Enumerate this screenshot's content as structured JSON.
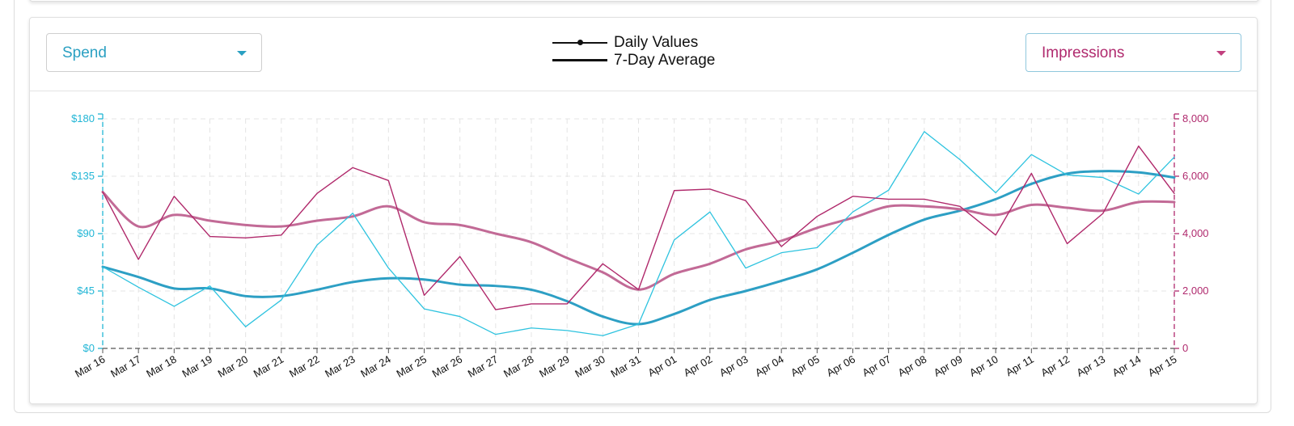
{
  "controls": {
    "left_metric": "Spend",
    "right_metric": "Impressions"
  },
  "legend": {
    "daily": "Daily Values",
    "average": "7-Day Average"
  },
  "colors": {
    "spend": "#2ec3df",
    "spend_avg": "#2d9fc4",
    "impressions": "#b0296b",
    "impressions_avg": "#c26a96",
    "grid": "#e4e4e4"
  },
  "chart_data": {
    "type": "line",
    "categories": [
      "Mar 16",
      "Mar 17",
      "Mar 18",
      "Mar 19",
      "Mar 20",
      "Mar 21",
      "Mar 22",
      "Mar 23",
      "Mar 24",
      "Mar 25",
      "Mar 26",
      "Mar 27",
      "Mar 28",
      "Mar 29",
      "Mar 30",
      "Mar 31",
      "Apr 01",
      "Apr 02",
      "Apr 03",
      "Apr 04",
      "Apr 05",
      "Apr 06",
      "Apr 07",
      "Apr 08",
      "Apr 09",
      "Apr 10",
      "Apr 11",
      "Apr 12",
      "Apr 13",
      "Apr 14",
      "Apr 15"
    ],
    "y_left": {
      "label": "Spend",
      "range": [
        0,
        180
      ],
      "ticks": [
        "$0",
        "$45",
        "$90",
        "$135",
        "$180"
      ],
      "tick_values": [
        0,
        45,
        90,
        135,
        180
      ]
    },
    "y_right": {
      "label": "Impressions",
      "range": [
        0,
        8000
      ],
      "ticks": [
        "0",
        "2,000",
        "4,000",
        "6,000",
        "8,000"
      ],
      "tick_values": [
        0,
        2000,
        4000,
        6000,
        8000
      ]
    },
    "series": [
      {
        "name": "Spend Daily Values",
        "axis": "left",
        "style": "thin",
        "values": [
          64,
          48,
          33,
          49,
          17,
          38,
          81,
          106,
          63,
          31,
          25,
          11,
          16,
          14,
          10,
          19,
          85,
          107,
          63,
          75,
          79,
          107,
          124,
          170,
          148,
          122,
          152,
          136,
          134,
          121,
          150
        ]
      },
      {
        "name": "Spend 7-Day Average",
        "axis": "left",
        "style": "thick",
        "values": [
          64,
          56,
          47,
          47,
          41,
          41,
          46,
          52,
          55,
          54,
          50,
          49,
          46,
          37,
          25,
          19,
          27,
          38,
          45,
          53,
          62,
          75,
          89,
          101,
          108,
          117,
          129,
          137,
          139,
          138,
          134
        ]
      },
      {
        "name": "Impressions Daily Values",
        "axis": "right",
        "style": "thin",
        "values": [
          5450,
          3100,
          5300,
          3900,
          3850,
          3950,
          5400,
          6300,
          5850,
          1850,
          3200,
          1350,
          1550,
          1550,
          2950,
          2050,
          5500,
          5550,
          5150,
          3550,
          4600,
          5300,
          5200,
          5200,
          4950,
          3950,
          6100,
          3650,
          4700,
          7050,
          5400
        ]
      },
      {
        "name": "Impressions 7-Day Average",
        "axis": "right",
        "style": "thick",
        "values": [
          5450,
          4250,
          4650,
          4450,
          4300,
          4250,
          4450,
          4600,
          4950,
          4400,
          4300,
          4000,
          3700,
          3150,
          2650,
          2050,
          2600,
          2950,
          3450,
          3750,
          4200,
          4550,
          4950,
          4950,
          4850,
          4650,
          5000,
          4900,
          4800,
          5100,
          5100
        ]
      }
    ]
  }
}
